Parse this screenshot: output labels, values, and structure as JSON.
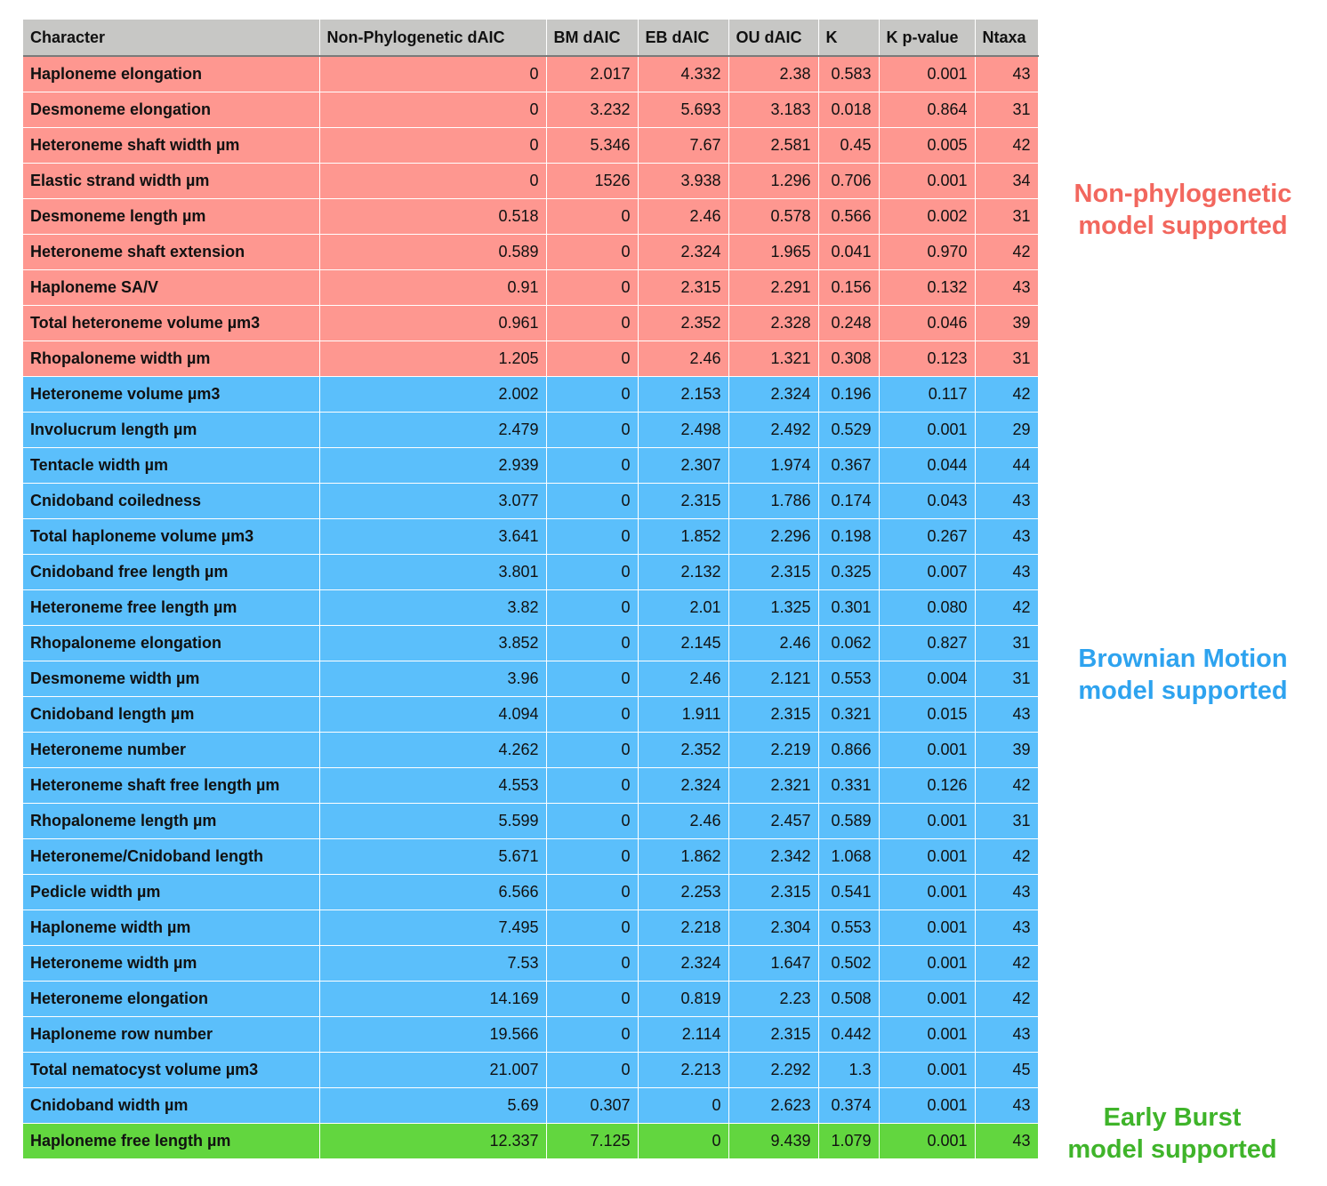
{
  "table": {
    "headers": [
      "Character",
      "Non-Phylogenetic dAIC",
      "BM dAIC",
      "EB dAIC",
      "OU dAIC",
      "K",
      "K p-value",
      "Ntaxa"
    ],
    "groups": {
      "np": "#fe9790",
      "bm": "#5bbffb",
      "eb": "#62d63f"
    },
    "rows": [
      {
        "group": "np",
        "cells": [
          "Haploneme elongation",
          "0",
          "2.017",
          "4.332",
          "2.38",
          "0.583",
          "0.001",
          "43"
        ]
      },
      {
        "group": "np",
        "cells": [
          "Desmoneme elongation",
          "0",
          "3.232",
          "5.693",
          "3.183",
          "0.018",
          "0.864",
          "31"
        ]
      },
      {
        "group": "np",
        "cells": [
          "Heteroneme shaft width µm",
          "0",
          "5.346",
          "7.67",
          "2.581",
          "0.45",
          "0.005",
          "42"
        ]
      },
      {
        "group": "np",
        "cells": [
          "Elastic strand width µm",
          "0",
          "1526",
          "3.938",
          "1.296",
          "0.706",
          "0.001",
          "34"
        ]
      },
      {
        "group": "np",
        "cells": [
          "Desmoneme length µm",
          "0.518",
          "0",
          "2.46",
          "0.578",
          "0.566",
          "0.002",
          "31"
        ]
      },
      {
        "group": "np",
        "cells": [
          "Heteroneme shaft extension",
          "0.589",
          "0",
          "2.324",
          "1.965",
          "0.041",
          "0.970",
          "42"
        ]
      },
      {
        "group": "np",
        "cells": [
          "Haploneme SA/V",
          "0.91",
          "0",
          "2.315",
          "2.291",
          "0.156",
          "0.132",
          "43"
        ]
      },
      {
        "group": "np",
        "cells": [
          "Total heteroneme volume µm3",
          "0.961",
          "0",
          "2.352",
          "2.328",
          "0.248",
          "0.046",
          "39"
        ]
      },
      {
        "group": "np",
        "cells": [
          "Rhopaloneme width µm",
          "1.205",
          "0",
          "2.46",
          "1.321",
          "0.308",
          "0.123",
          "31"
        ]
      },
      {
        "group": "bm",
        "cells": [
          "Heteroneme volume µm3",
          "2.002",
          "0",
          "2.153",
          "2.324",
          "0.196",
          "0.117",
          "42"
        ]
      },
      {
        "group": "bm",
        "cells": [
          "Involucrum length µm",
          "2.479",
          "0",
          "2.498",
          "2.492",
          "0.529",
          "0.001",
          "29"
        ]
      },
      {
        "group": "bm",
        "cells": [
          "Tentacle width µm",
          "2.939",
          "0",
          "2.307",
          "1.974",
          "0.367",
          "0.044",
          "44"
        ]
      },
      {
        "group": "bm",
        "cells": [
          "Cnidoband coiledness",
          "3.077",
          "0",
          "2.315",
          "1.786",
          "0.174",
          "0.043",
          "43"
        ]
      },
      {
        "group": "bm",
        "cells": [
          "Total haploneme volume µm3",
          "3.641",
          "0",
          "1.852",
          "2.296",
          "0.198",
          "0.267",
          "43"
        ]
      },
      {
        "group": "bm",
        "cells": [
          "Cnidoband free length µm",
          "3.801",
          "0",
          "2.132",
          "2.315",
          "0.325",
          "0.007",
          "43"
        ]
      },
      {
        "group": "bm",
        "cells": [
          "Heteroneme free length µm",
          "3.82",
          "0",
          "2.01",
          "1.325",
          "0.301",
          "0.080",
          "42"
        ]
      },
      {
        "group": "bm",
        "cells": [
          "Rhopaloneme elongation",
          "3.852",
          "0",
          "2.145",
          "2.46",
          "0.062",
          "0.827",
          "31"
        ]
      },
      {
        "group": "bm",
        "cells": [
          "Desmoneme width µm",
          "3.96",
          "0",
          "2.46",
          "2.121",
          "0.553",
          "0.004",
          "31"
        ]
      },
      {
        "group": "bm",
        "cells": [
          "Cnidoband length µm",
          "4.094",
          "0",
          "1.911",
          "2.315",
          "0.321",
          "0.015",
          "43"
        ]
      },
      {
        "group": "bm",
        "cells": [
          "Heteroneme number",
          "4.262",
          "0",
          "2.352",
          "2.219",
          "0.866",
          "0.001",
          "39"
        ]
      },
      {
        "group": "bm",
        "cells": [
          "Heteroneme shaft free length µm",
          "4.553",
          "0",
          "2.324",
          "2.321",
          "0.331",
          "0.126",
          "42"
        ]
      },
      {
        "group": "bm",
        "cells": [
          "Rhopaloneme length µm",
          "5.599",
          "0",
          "2.46",
          "2.457",
          "0.589",
          "0.001",
          "31"
        ]
      },
      {
        "group": "bm",
        "cells": [
          "Heteroneme/Cnidoband length",
          "5.671",
          "0",
          "1.862",
          "2.342",
          "1.068",
          "0.001",
          "42"
        ]
      },
      {
        "group": "bm",
        "cells": [
          "Pedicle width µm",
          "6.566",
          "0",
          "2.253",
          "2.315",
          "0.541",
          "0.001",
          "43"
        ]
      },
      {
        "group": "bm",
        "cells": [
          "Haploneme width µm",
          "7.495",
          "0",
          "2.218",
          "2.304",
          "0.553",
          "0.001",
          "43"
        ]
      },
      {
        "group": "bm",
        "cells": [
          "Heteroneme width µm",
          "7.53",
          "0",
          "2.324",
          "1.647",
          "0.502",
          "0.001",
          "42"
        ]
      },
      {
        "group": "bm",
        "cells": [
          "Heteroneme elongation",
          "14.169",
          "0",
          "0.819",
          "2.23",
          "0.508",
          "0.001",
          "42"
        ]
      },
      {
        "group": "bm",
        "cells": [
          "Haploneme row number",
          "19.566",
          "0",
          "2.114",
          "2.315",
          "0.442",
          "0.001",
          "43"
        ]
      },
      {
        "group": "bm",
        "cells": [
          "Total nematocyst volume µm3",
          "21.007",
          "0",
          "2.213",
          "2.292",
          "1.3",
          "0.001",
          "45"
        ]
      },
      {
        "group": "bm",
        "cells": [
          "Cnidoband width µm",
          "5.69",
          "0.307",
          "0",
          "2.623",
          "0.374",
          "0.001",
          "43"
        ]
      },
      {
        "group": "eb",
        "cells": [
          "Haploneme free length µm",
          "12.337",
          "7.125",
          "0",
          "9.439",
          "1.079",
          "0.001",
          "43"
        ]
      }
    ]
  },
  "side_labels": {
    "non_phylogenetic": {
      "line1": "Non-phylogenetic",
      "line2": "model supported",
      "color": "#f2675e"
    },
    "brownian_motion": {
      "line1": "Brownian Motion",
      "line2": "model supported",
      "color": "#2ea3ef"
    },
    "early_burst": {
      "line1": "Early Burst",
      "line2": "model supported",
      "color": "#3fb42a"
    }
  }
}
